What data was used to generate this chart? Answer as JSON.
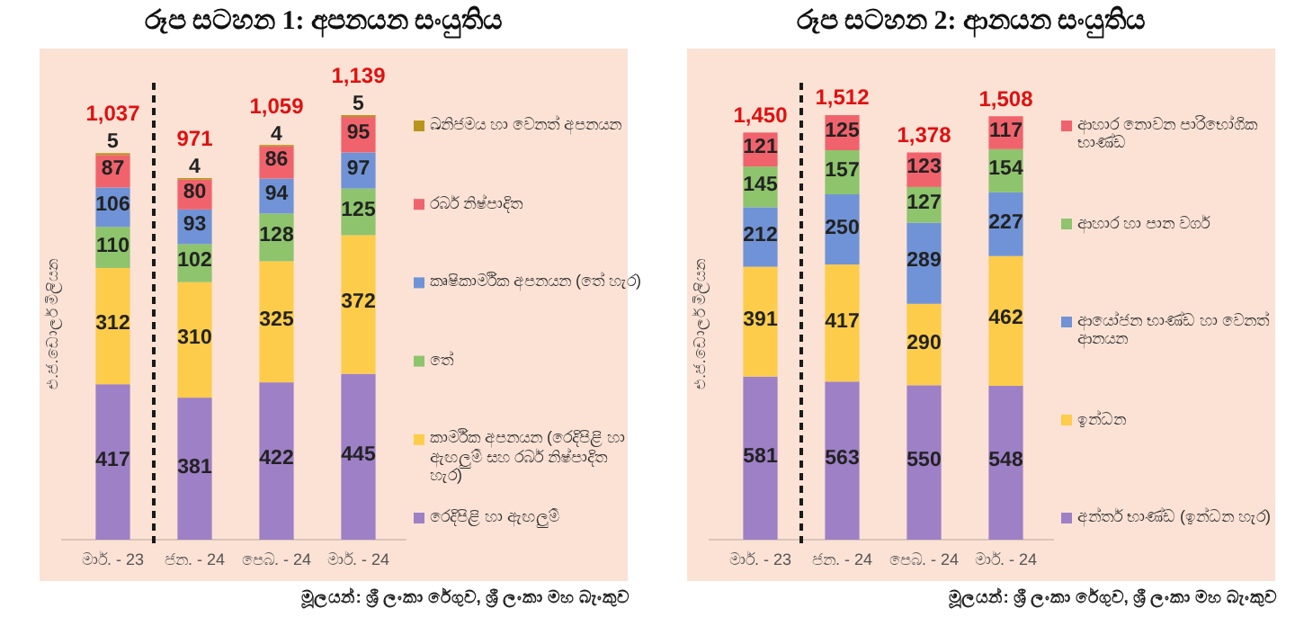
{
  "chart_data": [
    {
      "type": "bar",
      "stacked": true,
      "title": "රූප සටහන 1:  අපනයන සංයුතිය",
      "ylabel": "එ.ජ.ඩොලර් මිලියන",
      "categories": [
        "මාර්. - 23",
        "ජන. - 24",
        "පෙබ. - 24",
        "මාර්. - 24"
      ],
      "series": [
        {
          "name": "රෙදිපිළි හා ඇඟලුම්",
          "color": "#9e80c6",
          "values": [
            417,
            381,
            422,
            445
          ]
        },
        {
          "name": "කාර්මික අපනයන (රෙදිපිළි හා ඇඟලුම් සහ රබර් නිෂ්පාදිත හැර)",
          "color": "#fdcc4a",
          "values": [
            312,
            310,
            325,
            372
          ]
        },
        {
          "name": "තේ",
          "color": "#8dc46c",
          "values": [
            110,
            102,
            128,
            125
          ]
        },
        {
          "name": "කෘෂිකාර්මික අපනයන (තේ හැර)",
          "color": "#6f93d6",
          "values": [
            106,
            93,
            94,
            97
          ]
        },
        {
          "name": "රබර් නිෂ්පාදිත",
          "color": "#f1636c",
          "values": [
            87,
            80,
            86,
            95
          ]
        },
        {
          "name": "ඛනිජමය හා වෙනත් අපනයන",
          "color": "#b8941c",
          "values": [
            5,
            4,
            4,
            5
          ]
        }
      ],
      "data_labels": true,
      "totals": [
        "1,037",
        "971",
        "1,059",
        "1,139"
      ],
      "legend": "right",
      "annotations": [
        "මූලයන්: ශ්‍රී ලංකා රේගුව, ශ්‍රී ලංකා මහ බැංකුව"
      ]
    },
    {
      "type": "bar",
      "stacked": true,
      "title": "රූප සටහන 2:  ආනයන සංයුතිය",
      "ylabel": "එ.ජ.ඩොලර් මිලියන",
      "categories": [
        "මාර්. - 23",
        "ජන. - 24",
        "පෙබ. - 24",
        "මාර්. - 24"
      ],
      "series": [
        {
          "name": "අන්තර් භාණ්ඩ (ඉන්ධන හැර)",
          "color": "#9e80c6",
          "values": [
            581,
            563,
            550,
            548
          ]
        },
        {
          "name": "ඉන්ධන",
          "color": "#fdcc4a",
          "values": [
            391,
            417,
            290,
            462
          ]
        },
        {
          "name": "ආයෝජන භාණ්ඩ හා වෙනත් ආනයන",
          "color": "#6f93d6",
          "values": [
            212,
            250,
            289,
            227
          ]
        },
        {
          "name": "ආහාර හා පාන වර්ග",
          "color": "#8dc46c",
          "values": [
            145,
            157,
            127,
            154
          ]
        },
        {
          "name": "ආහාර නොවන පාරිභෝගික භාණ්ඩ",
          "color": "#f1636c",
          "values": [
            121,
            125,
            123,
            117
          ]
        }
      ],
      "data_labels": true,
      "totals": [
        "1,450",
        "1,512",
        "1,378",
        "1,508"
      ],
      "legend": "right",
      "annotations": [
        "මූලයන්: ශ්‍රී ලංකා රේගුව, ශ්‍රී ලංකා මහ බැංකුව"
      ]
    }
  ]
}
